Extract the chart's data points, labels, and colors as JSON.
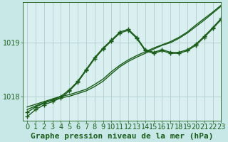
{
  "background_color": "#c8e8e8",
  "plot_bg_color": "#daf0f0",
  "grid_color": "#b0cccc",
  "line_color": "#1a5c1a",
  "xlabel": "Graphe pression niveau de la mer (hPa)",
  "xlabel_fontsize": 8,
  "tick_fontsize": 7,
  "xlim": [
    -0.5,
    23
  ],
  "ylim": [
    1017.55,
    1019.75
  ],
  "yticks": [
    1018,
    1019
  ],
  "xticks": [
    0,
    1,
    2,
    3,
    4,
    5,
    6,
    7,
    8,
    9,
    10,
    11,
    12,
    13,
    14,
    15,
    16,
    17,
    18,
    19,
    20,
    21,
    22,
    23
  ],
  "lines": [
    {
      "x": [
        0,
        1,
        2,
        3,
        4,
        5,
        6,
        7,
        8,
        9,
        10,
        11,
        12,
        13,
        14,
        15,
        16,
        17,
        18,
        19,
        20,
        21,
        22,
        23
      ],
      "y": [
        1017.75,
        1017.82,
        1017.88,
        1017.93,
        1017.97,
        1018.0,
        1018.05,
        1018.1,
        1018.18,
        1018.28,
        1018.42,
        1018.55,
        1018.65,
        1018.73,
        1018.8,
        1018.88,
        1018.95,
        1019.0,
        1019.08,
        1019.18,
        1019.3,
        1019.42,
        1019.55,
        1019.68
      ],
      "marker": null,
      "linewidth": 1.0
    },
    {
      "x": [
        0,
        1,
        2,
        3,
        4,
        5,
        6,
        7,
        8,
        9,
        10,
        11,
        12,
        13,
        14,
        15,
        16,
        17,
        18,
        19,
        20,
        21,
        22,
        23
      ],
      "y": [
        1017.8,
        1017.85,
        1017.9,
        1017.95,
        1018.0,
        1018.03,
        1018.08,
        1018.13,
        1018.22,
        1018.32,
        1018.46,
        1018.58,
        1018.68,
        1018.76,
        1018.83,
        1018.9,
        1018.96,
        1019.02,
        1019.1,
        1019.2,
        1019.33,
        1019.45,
        1019.57,
        1019.7
      ],
      "marker": null,
      "linewidth": 1.0
    },
    {
      "x": [
        0,
        1,
        2,
        3,
        4,
        5,
        6,
        7,
        8,
        9,
        10,
        11,
        12,
        13,
        14,
        15,
        16,
        17,
        18,
        19,
        20,
        21,
        22,
        23
      ],
      "y": [
        1017.7,
        1017.8,
        1017.87,
        1017.93,
        1018.0,
        1018.12,
        1018.28,
        1018.5,
        1018.72,
        1018.9,
        1019.05,
        1019.2,
        1019.25,
        1019.1,
        1018.87,
        1018.82,
        1018.87,
        1018.82,
        1018.82,
        1018.87,
        1018.97,
        1019.12,
        1019.28,
        1019.45
      ],
      "marker": "+",
      "markersize": 4,
      "linewidth": 1.0
    },
    {
      "x": [
        0,
        1,
        2,
        3,
        4,
        5,
        6,
        7,
        8,
        9,
        10,
        11,
        12,
        13,
        14,
        15,
        16,
        17,
        18,
        19,
        20,
        21,
        22,
        23
      ],
      "y": [
        1017.62,
        1017.75,
        1017.84,
        1017.9,
        1017.97,
        1018.1,
        1018.26,
        1018.48,
        1018.7,
        1018.88,
        1019.03,
        1019.18,
        1019.23,
        1019.08,
        1018.85,
        1018.8,
        1018.85,
        1018.8,
        1018.8,
        1018.85,
        1018.95,
        1019.1,
        1019.26,
        1019.43
      ],
      "marker": "+",
      "markersize": 4,
      "linewidth": 1.0
    }
  ]
}
